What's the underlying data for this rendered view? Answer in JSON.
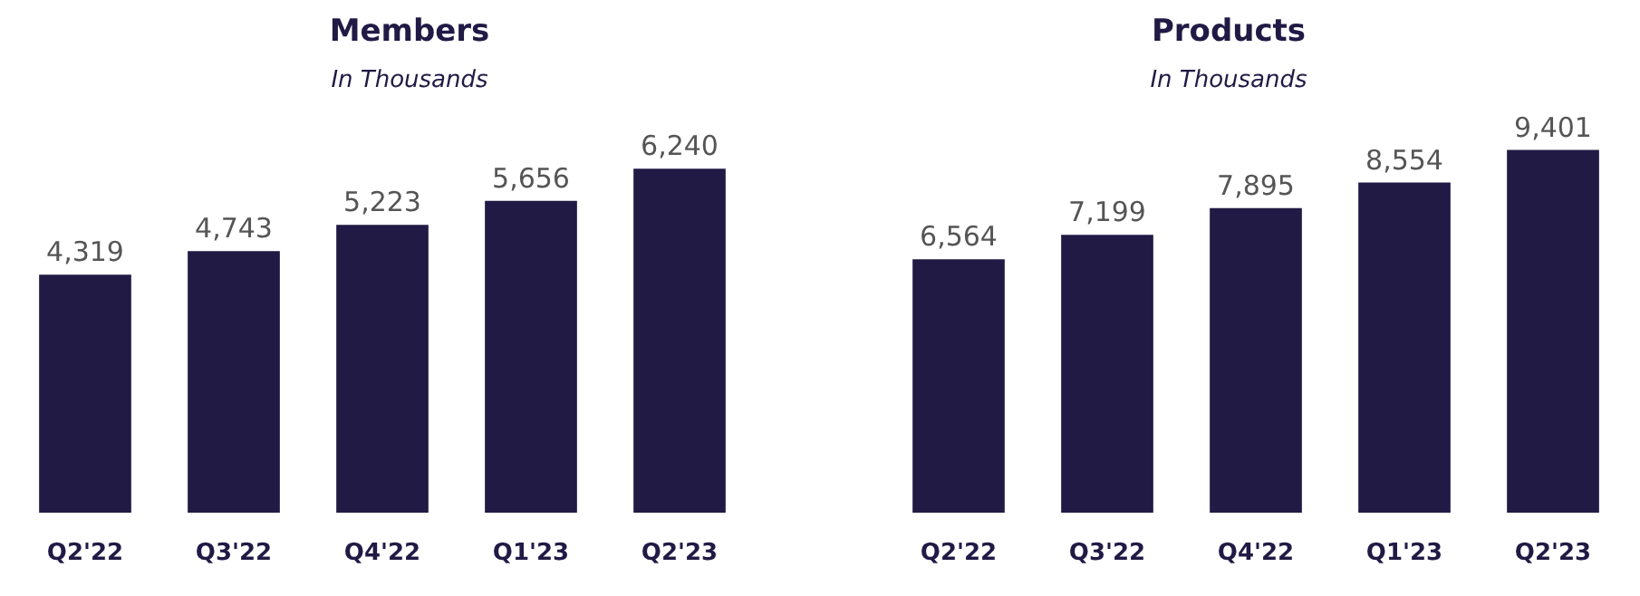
{
  "chart_data": [
    {
      "type": "bar",
      "title": "Members",
      "subtitle": "In Thousands",
      "categories": [
        "Q2'22",
        "Q3'22",
        "Q4'22",
        "Q1'23",
        "Q2'23"
      ],
      "values": [
        4319,
        4743,
        5223,
        5656,
        6240
      ],
      "value_labels": [
        "4,319",
        "4,743",
        "5,223",
        "5,656",
        "6,240"
      ],
      "color": "#211a45"
    },
    {
      "type": "bar",
      "title": "Products",
      "subtitle": "In Thousands",
      "categories": [
        "Q2'22",
        "Q3'22",
        "Q4'22",
        "Q1'23",
        "Q2'23"
      ],
      "values": [
        6564,
        7199,
        7895,
        8554,
        9401
      ],
      "value_labels": [
        "6,564",
        "7,199",
        "7,895",
        "8,554",
        "9,401"
      ],
      "color": "#211a45"
    }
  ]
}
